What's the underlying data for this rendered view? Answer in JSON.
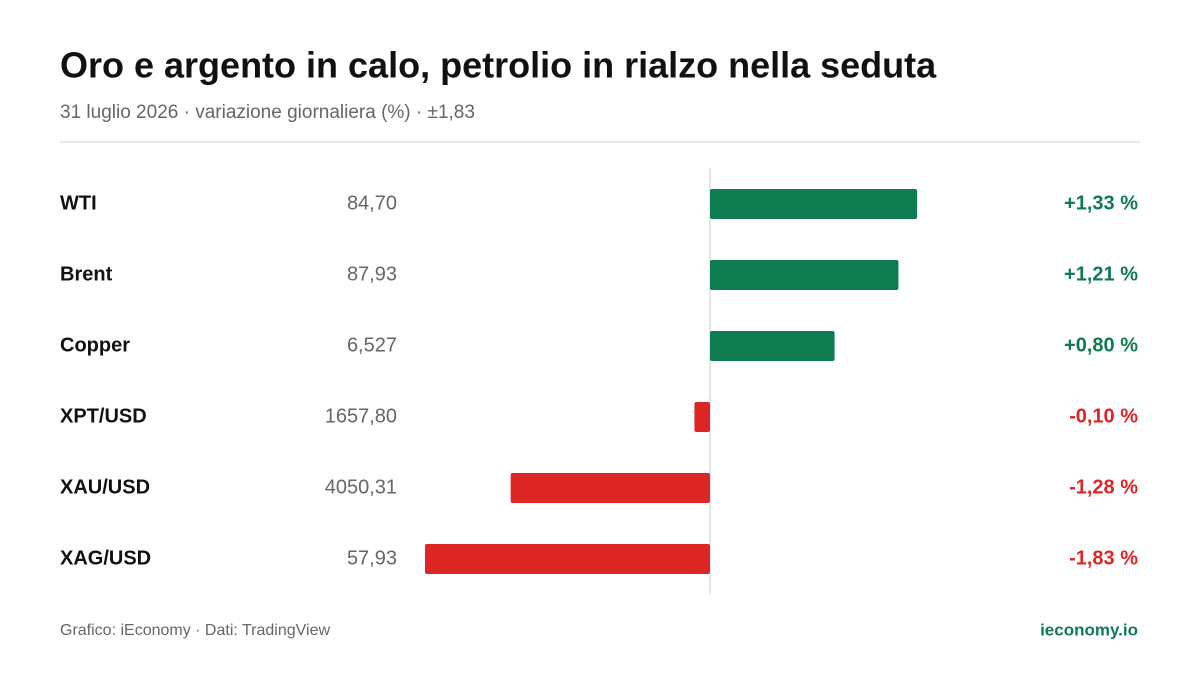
{
  "chart_data": {
    "type": "diverging-bar",
    "title": "Oro e argento in calo, petrolio in rialzo nella seduta",
    "subtitle": "31 luglio 2026 · variazione giornaliera (%) · ±1,83",
    "categories": [
      "WTI",
      "Brent",
      "Copper",
      "XPT/USD",
      "XAU/USD",
      "XAG/USD"
    ],
    "prices": [
      "84,70",
      "87,93",
      "6,527",
      "1657,80",
      "4050,31",
      "57,93"
    ],
    "values": [
      1.33,
      1.21,
      0.8,
      -0.1,
      -1.28,
      -1.83
    ],
    "value_labels": [
      "+1,33 %",
      "+1,21 %",
      "+0,80 %",
      "-0,10 %",
      "-1,28 %",
      "-1,83 %"
    ],
    "xlim": [
      -1.83,
      1.83
    ],
    "positive_color": "#0e7c50",
    "negative_color": "#dc2626",
    "source": "Grafico: iEconomy · Dati: TradingView",
    "site": "ieconomy.io"
  }
}
